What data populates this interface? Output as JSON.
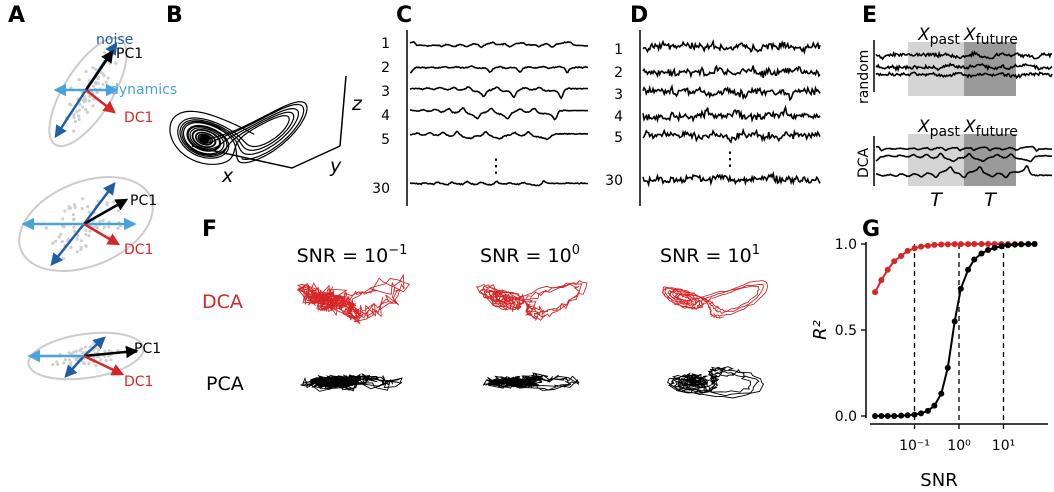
{
  "panel_labels": {
    "a": "A",
    "b": "B",
    "c": "C",
    "d": "D",
    "e": "E",
    "f": "F",
    "g": "G"
  },
  "panel_a": {
    "label_noise": "noise",
    "label_pc1": "PC1",
    "label_dynamics": "dynamics",
    "label_dc1": "DC1",
    "colors": {
      "noise": "#1f5fa8",
      "dynamics": "#4aa3df",
      "dc": "#d62728",
      "pc": "#000000",
      "ellipse": "#cccccc"
    }
  },
  "panel_b": {
    "xlabel": "x",
    "ylabel": "y",
    "zlabel": "z"
  },
  "panel_c": {
    "channel_labels": [
      "1",
      "2",
      "3",
      "4",
      "5"
    ],
    "last_label": "30",
    "dots": "⋮"
  },
  "panel_d": {
    "channel_labels": [
      "1",
      "2",
      "3",
      "4",
      "5"
    ],
    "last_label": "30",
    "dots": "⋮"
  },
  "panel_e": {
    "row1_label": "random",
    "row2_label": "DCA",
    "x_sym": "X",
    "past_sub": "past",
    "future_sub": "future",
    "t_label": "T"
  },
  "panel_f": {
    "snr_prefix": "SNR = 10",
    "exponents": [
      "−1",
      "0",
      "1"
    ],
    "row_dca": "DCA",
    "row_pca": "PCA",
    "dca_color": "#d62728",
    "pca_color": "#000000"
  },
  "chart_data": {
    "type": "line",
    "title": "",
    "xlabel": "SNR",
    "ylabel": "R²",
    "xscale": "log",
    "x_tick_labels": [
      "10⁻¹",
      "10⁰",
      "10¹"
    ],
    "y_tick_labels": [
      "0.0",
      "0.5",
      "1.0"
    ],
    "xlim": [
      0.01,
      100
    ],
    "ylim": [
      0,
      1
    ],
    "vlines": [
      0.1,
      1,
      10
    ],
    "series": [
      {
        "color": "#d62728",
        "x": [
          0.013,
          0.018,
          0.025,
          0.035,
          0.05,
          0.07,
          0.1,
          0.14,
          0.2,
          0.28,
          0.4,
          0.56,
          0.8,
          1.1,
          1.6,
          2.2,
          3.2,
          4.5,
          6.3,
          9,
          12.6,
          18,
          25,
          36,
          50
        ],
        "values": [
          0.72,
          0.79,
          0.85,
          0.9,
          0.93,
          0.96,
          0.975,
          0.985,
          0.99,
          0.995,
          0.997,
          0.998,
          0.999,
          0.999,
          0.999,
          1.0,
          1.0,
          1.0,
          1.0,
          1.0,
          1.0,
          1.0,
          1.0,
          1.0,
          1.0
        ]
      },
      {
        "color": "#000000",
        "x": [
          0.013,
          0.018,
          0.025,
          0.035,
          0.05,
          0.07,
          0.1,
          0.14,
          0.2,
          0.28,
          0.4,
          0.56,
          0.8,
          1.1,
          1.6,
          2.2,
          3.2,
          4.5,
          6.3,
          9,
          12.6,
          18,
          25,
          36,
          50
        ],
        "values": [
          0.0,
          0.0,
          0.0,
          0.0,
          0.002,
          0.004,
          0.008,
          0.015,
          0.03,
          0.06,
          0.13,
          0.28,
          0.55,
          0.74,
          0.85,
          0.91,
          0.945,
          0.965,
          0.978,
          0.987,
          0.993,
          0.996,
          0.998,
          0.999,
          1.0
        ]
      }
    ]
  }
}
